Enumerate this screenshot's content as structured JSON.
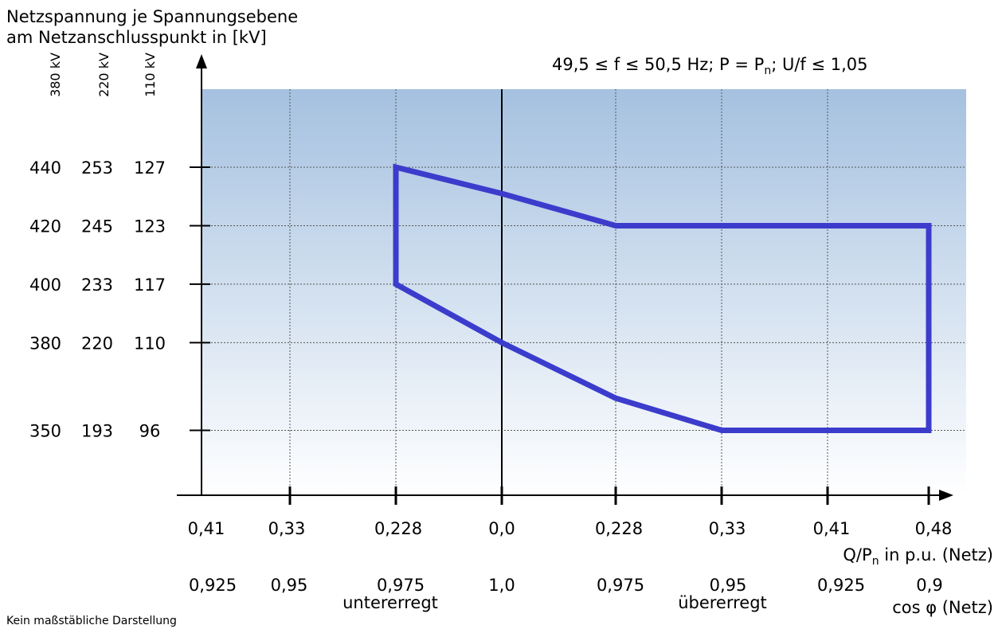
{
  "chart_data": {
    "type": "area",
    "title": "Netzspannung je Spannungsebene\nam Netzanschlusspunkt in [kV]",
    "y_level_headers": [
      "380 kV",
      "220 kV",
      "110 kV"
    ],
    "y_rows": [
      {
        "values": [
          "440",
          "253",
          "127"
        ]
      },
      {
        "values": [
          "420",
          "245",
          "123"
        ]
      },
      {
        "values": [
          "400",
          "233",
          "117"
        ]
      },
      {
        "values": [
          "380",
          "220",
          "110"
        ]
      },
      {
        "values": [
          "350",
          "193",
          "96"
        ]
      }
    ],
    "y_row_level": [
      440,
      420,
      400,
      380,
      350
    ],
    "ylim": [
      327.8,
      466.7
    ],
    "x_ticks": [
      {
        "pos": -0.41,
        "q": "0,41",
        "cos": "0,925"
      },
      {
        "pos": -0.33,
        "q": "0,33",
        "cos": "0,95"
      },
      {
        "pos": -0.228,
        "q": "0,228",
        "cos": "0,975"
      },
      {
        "pos": 0.0,
        "q": "0,0",
        "cos": "1,0"
      },
      {
        "pos": 0.228,
        "q": "0,228",
        "cos": "0,975"
      },
      {
        "pos": 0.33,
        "q": "0,33",
        "cos": "0,95"
      },
      {
        "pos": 0.41,
        "q": "0,41",
        "cos": "0,925"
      },
      {
        "pos": 0.48,
        "q": "0,48",
        "cos": "0,9"
      }
    ],
    "xlim": [
      -0.41,
      0.48
    ],
    "xlabel_main": "Q/P",
    "xlabel_sub": "n",
    "xlabel_rest": " in p.u. (Netz)",
    "x2label": "cos φ (Netz)",
    "region_labels": {
      "left": "untererregt",
      "right": "übererregt"
    },
    "annotation": {
      "part1": "49,5 ≤ f ≤ 50,5 Hz; P = P",
      "sub": "n",
      "part2": "; U/f ≤ 1,05"
    },
    "footnote": "Kein maßstäbliche Darstellung",
    "series": [
      {
        "points": [
          {
            "x": -0.228,
            "y": 440
          },
          {
            "x": 0.0,
            "y": 431
          },
          {
            "x": 0.228,
            "y": 420
          },
          {
            "x": 0.48,
            "y": 420
          },
          {
            "x": 0.48,
            "y": 350
          },
          {
            "x": 0.33,
            "y": 350
          },
          {
            "x": 0.228,
            "y": 361
          },
          {
            "x": 0.0,
            "y": 380
          },
          {
            "x": -0.228,
            "y": 400
          }
        ],
        "closed": true
      }
    ],
    "grid": true,
    "colors": {
      "polygon": "#3c3ccc",
      "gradient_top": "#a5c1e0",
      "gradient_bottom": "#ffffff"
    }
  }
}
